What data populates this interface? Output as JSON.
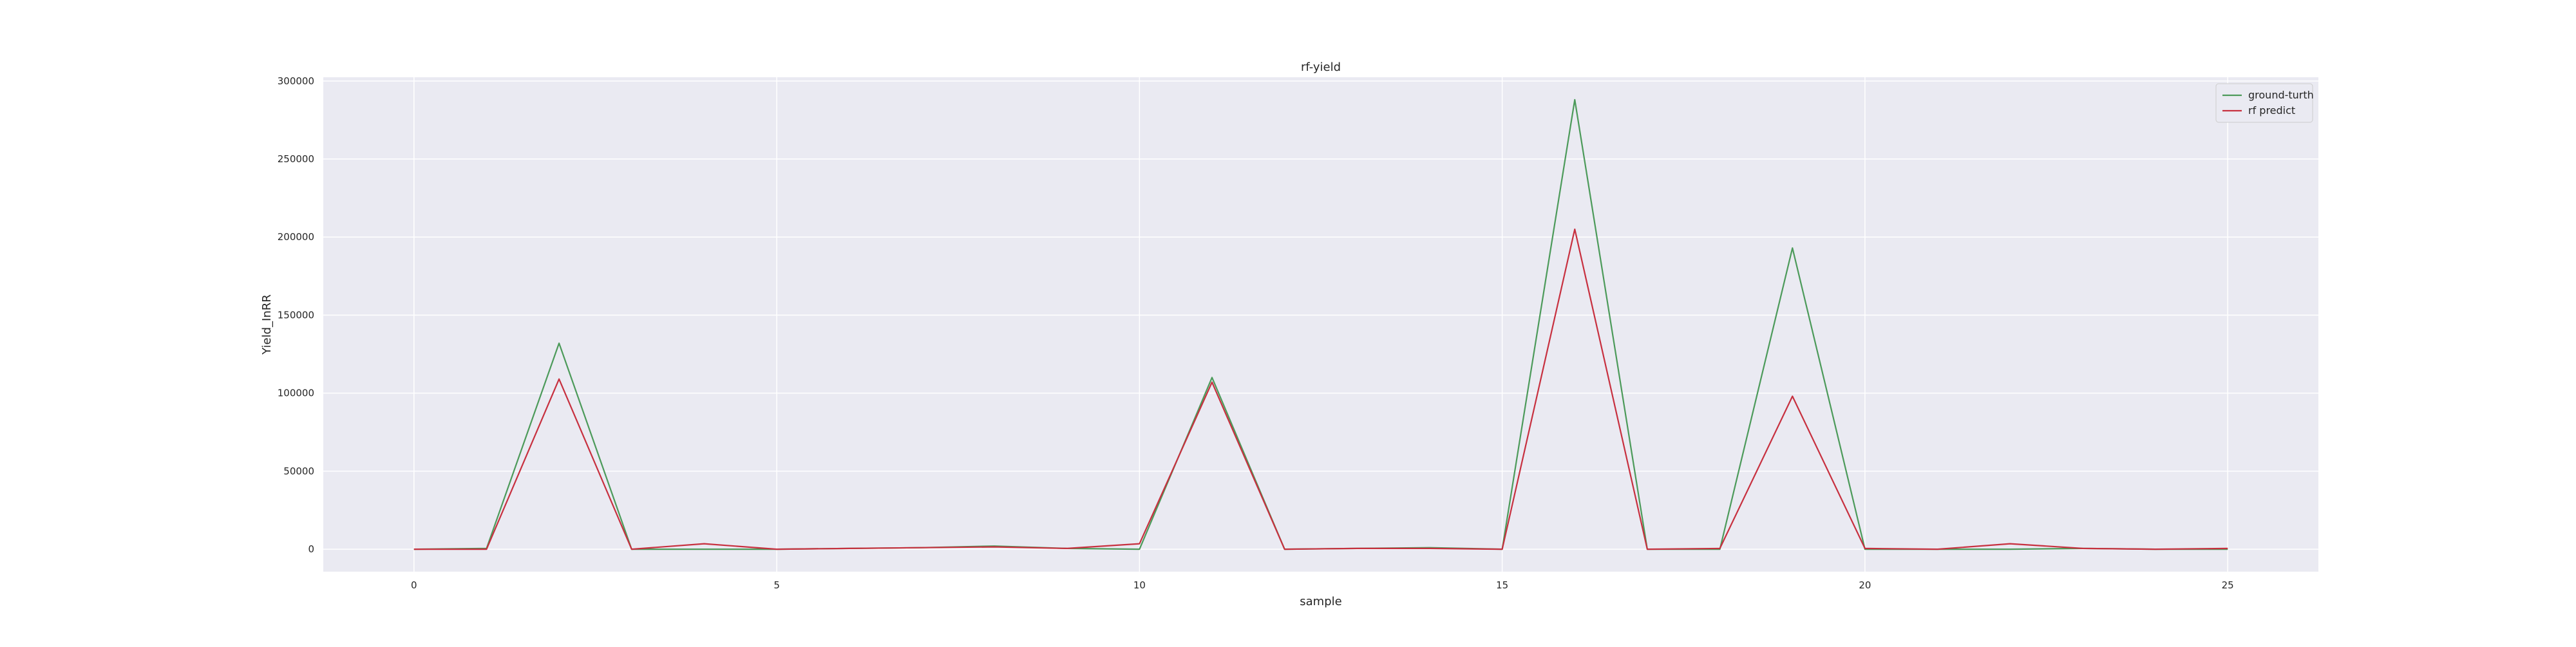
{
  "chart_data": {
    "type": "line",
    "title": "rf-yield",
    "xlabel": "sample",
    "ylabel": "Yield_InRR",
    "xlim": [
      -1.25,
      26.25
    ],
    "ylim": [
      -14400,
      302400
    ],
    "x_ticks": [
      0,
      5,
      10,
      15,
      20,
      25
    ],
    "y_ticks": [
      0,
      50000,
      100000,
      150000,
      200000,
      250000,
      300000
    ],
    "grid": true,
    "legend_position": "top-right",
    "background_color": "#eaeaf2",
    "grid_color": "#ffffff",
    "x": [
      0,
      1,
      2,
      3,
      4,
      5,
      6,
      7,
      8,
      9,
      10,
      11,
      12,
      13,
      14,
      15,
      16,
      17,
      18,
      19,
      20,
      21,
      22,
      23,
      24,
      25
    ],
    "series": [
      {
        "name": "ground-turth",
        "color": "#4c9a5a",
        "values": [
          0,
          500,
          132000,
          0,
          0,
          0,
          500,
          1000,
          2000,
          500,
          0,
          110000,
          0,
          500,
          1000,
          0,
          288000,
          0,
          0,
          193000,
          0,
          0,
          0,
          500,
          0,
          0
        ]
      },
      {
        "name": "rf predict",
        "color": "#c7303f",
        "values": [
          0,
          0,
          109000,
          0,
          3500,
          0,
          500,
          1000,
          1500,
          500,
          3500,
          107000,
          0,
          500,
          500,
          0,
          205000,
          0,
          500,
          98000,
          500,
          0,
          3500,
          500,
          0,
          500
        ]
      }
    ]
  }
}
